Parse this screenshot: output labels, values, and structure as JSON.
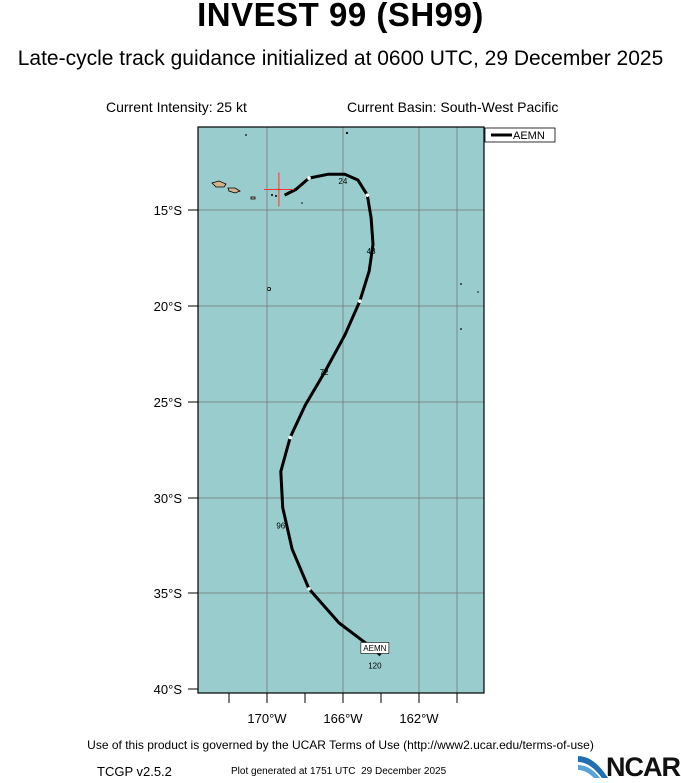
{
  "title": "INVEST 99 (SH99)",
  "subtitle": "Late-cycle track guidance initialized at 0600 UTC, 29 December 2025",
  "current_intensity": "Current Intensity: 25 kt",
  "current_basin": "Current Basin: South-West Pacific",
  "legend": {
    "label": "AEMN"
  },
  "colors": {
    "ocean": "#99cccc",
    "land": "#d2b48c",
    "track": "#000000",
    "marker": "#ff3333"
  },
  "map": {
    "lat_labels": [
      "15°S",
      "20°S",
      "25°S",
      "30°S",
      "35°S",
      "40°S"
    ],
    "lon_labels": [
      "170°W",
      "166°W",
      "162°W"
    ]
  },
  "chart_data": {
    "type": "track",
    "x_label": "Longitude",
    "y_label": "Latitude",
    "lon_range": [
      -173.6,
      -158.4
    ],
    "lat_range": [
      -40.2,
      -10.3
    ],
    "current_position": {
      "lon": -169.3,
      "lat": -13.6,
      "label": "+"
    },
    "model": "AEMN",
    "track": [
      {
        "lon": -169.0,
        "lat": -13.9
      },
      {
        "lon": -168.4,
        "lat": -13.6
      },
      {
        "lon": -167.7,
        "lat": -13.0
      },
      {
        "lon": -166.7,
        "lat": -12.8
      },
      {
        "lon": -165.8,
        "lat": -12.8
      },
      {
        "lon": -165.1,
        "lat": -13.1
      },
      {
        "lon": -164.6,
        "lat": -13.9
      },
      {
        "lon": -164.4,
        "lat": -15.1
      },
      {
        "lon": -164.3,
        "lat": -16.5
      },
      {
        "lon": -164.5,
        "lat": -17.9
      },
      {
        "lon": -165.0,
        "lat": -19.5
      },
      {
        "lon": -165.8,
        "lat": -21.3
      },
      {
        "lon": -166.9,
        "lat": -23.3
      },
      {
        "lon": -167.9,
        "lat": -25.0
      },
      {
        "lon": -168.7,
        "lat": -26.7
      },
      {
        "lon": -169.2,
        "lat": -28.5
      },
      {
        "lon": -169.1,
        "lat": -30.4
      },
      {
        "lon": -168.6,
        "lat": -32.6
      },
      {
        "lon": -167.7,
        "lat": -34.7
      },
      {
        "lon": -166.1,
        "lat": -36.5
      },
      {
        "lon": -164.5,
        "lat": -37.7
      },
      {
        "lon": -163.9,
        "lat": -38.2
      }
    ],
    "tick_marks": [
      {
        "lon": -167.7,
        "lat": -13.0
      },
      {
        "lon": -164.6,
        "lat": -13.9
      },
      {
        "lon": -165.0,
        "lat": -19.5
      },
      {
        "lon": -168.7,
        "lat": -26.7
      },
      {
        "lon": -167.7,
        "lat": -34.7
      }
    ],
    "hour_labels": [
      {
        "text": "24",
        "lon": -165.9,
        "lat": -13.3
      },
      {
        "text": "48",
        "lon": -164.4,
        "lat": -17.0
      },
      {
        "text": "72",
        "lon": -166.9,
        "lat": -23.4
      },
      {
        "text": "96",
        "lon": -169.2,
        "lat": -31.5
      },
      {
        "text": "120",
        "lon": -164.2,
        "lat": -38.9
      }
    ],
    "end_label": {
      "text": "AEMN",
      "lon": -164.2,
      "lat": -37.9
    }
  }
}
